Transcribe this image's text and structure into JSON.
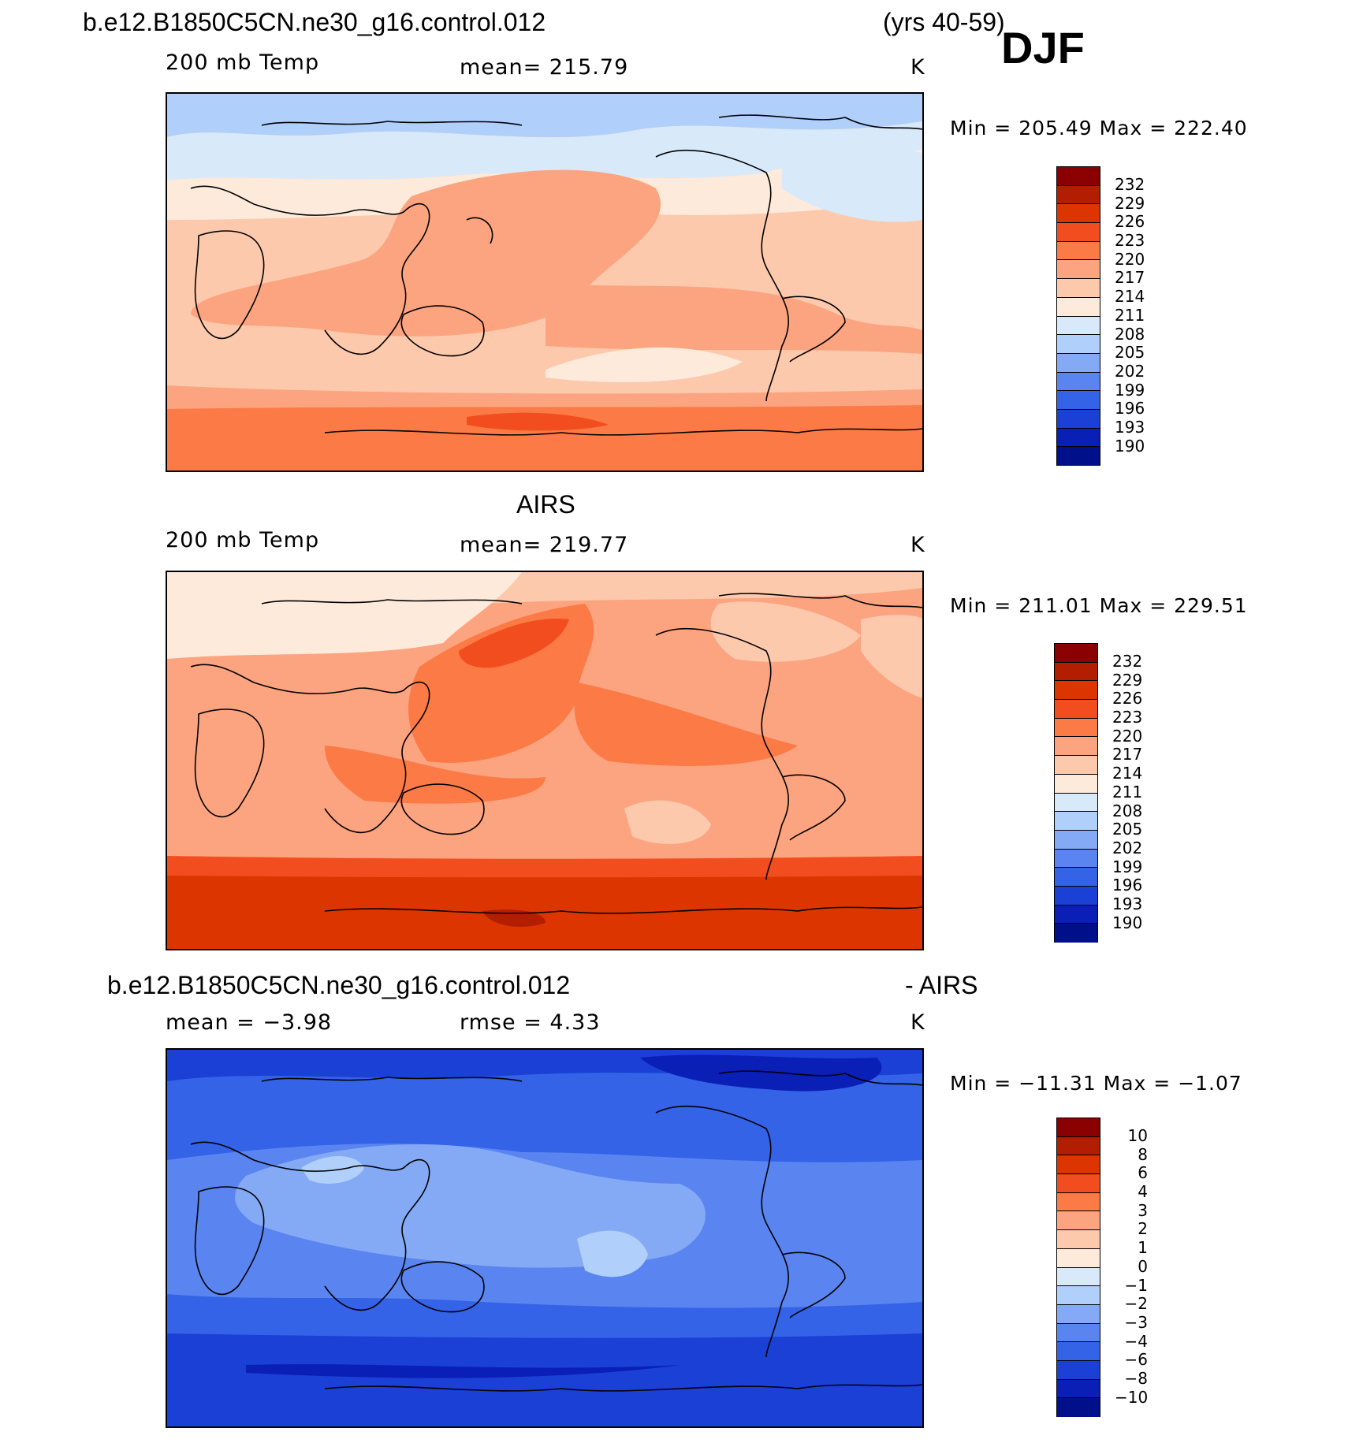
{
  "header": {
    "case_title": "b.e12.B1850C5CN.ne30_g16.control.012",
    "years": "(yrs 40-59)",
    "season": "DJF"
  },
  "panels": [
    {
      "title": "",
      "variable": "200 mb Temp",
      "stat": "mean=  215.79",
      "units": "K",
      "minmax": "Min  =  205.49  Max  =  222.40",
      "palette": "temp"
    },
    {
      "title": "AIRS",
      "variable": "200 mb Temp",
      "stat": "mean=  219.77",
      "units": "K",
      "minmax": "Min  =  211.01  Max  =  229.51",
      "palette": "temp"
    },
    {
      "title_left": "b.e12.B1850C5CN.ne30_g16.control.012",
      "title_right": "- AIRS",
      "variable": "mean  =    −3.98",
      "stat": "rmse  =     4.33",
      "units": "K",
      "minmax": "Min  =  −11.31  Max  =   −1.07",
      "palette": "diff"
    }
  ],
  "colorbars": {
    "temp_labels": [
      "232",
      "229",
      "226",
      "223",
      "220",
      "217",
      "214",
      "211",
      "208",
      "205",
      "202",
      "199",
      "196",
      "193",
      "190"
    ],
    "diff_labels": [
      "10",
      "8",
      "6",
      "4",
      "3",
      "2",
      "1",
      "0",
      "−1",
      "−2",
      "−3",
      "−4",
      "−6",
      "−8",
      "−10"
    ],
    "colors_top_to_bottom": [
      "#8b0000",
      "#b41e00",
      "#dc3500",
      "#f24d1e",
      "#fb7a45",
      "#fca480",
      "#fdc9ad",
      "#feeadb",
      "#d8e9fa",
      "#b0cffa",
      "#85aaf5",
      "#5a85f0",
      "#3463e8",
      "#1a40d6",
      "#0a1fb5",
      "#00108a"
    ]
  },
  "map": {
    "projection": "cylindrical equidistant, Pacific-centered",
    "fields": {
      "model_temp": "mostly 214-220 K; cooler 205-211 K in northern high latitudes; warmest 220-223 K over southern ocean",
      "airs_temp": "mostly 217-223 K; 223-226 K band over North Pacific; 226-229 K over southern ocean",
      "difference": "all negative; -2 to -3 K over tropics, -4 to -6 K midlatitudes, -6 to -8 K polar regions"
    }
  }
}
